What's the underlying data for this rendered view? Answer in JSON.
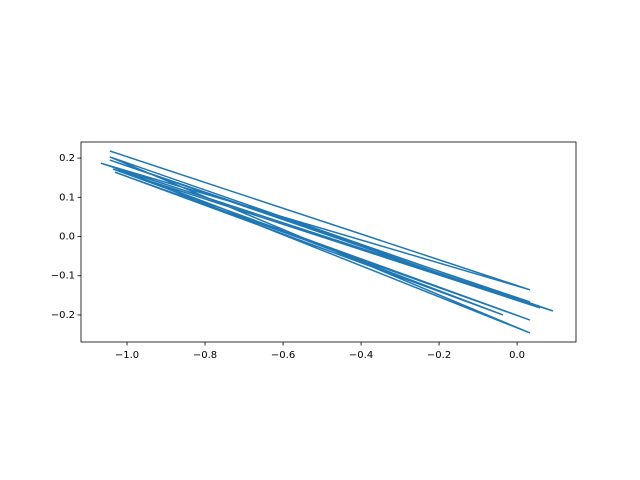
{
  "chart_data": {
    "type": "line",
    "x": [
      -1.044,
      0.033,
      -1.067,
      0.092,
      -1.044,
      0.033,
      -1.036,
      -0.036,
      -1.031,
      0.033,
      -1.036,
      0.059,
      -1.044,
      0.033
    ],
    "series": [
      {
        "color": "#1f77b4",
        "values": [
          0.218,
          -0.136,
          0.187,
          -0.19,
          0.203,
          -0.246,
          0.177,
          -0.2,
          0.164,
          -0.213,
          0.172,
          -0.182,
          0.195,
          -0.167
        ]
      }
    ],
    "xlim": [
      -1.118,
      0.151
    ],
    "ylim": [
      -0.269,
      0.241
    ],
    "xticks": [
      {
        "value": -1.0,
        "label": "−1.0"
      },
      {
        "value": -0.8,
        "label": "−0.8"
      },
      {
        "value": -0.6,
        "label": "−0.6"
      },
      {
        "value": -0.4,
        "label": "−0.4"
      },
      {
        "value": -0.2,
        "label": "−0.2"
      },
      {
        "value": 0,
        "label": "0.0"
      }
    ],
    "yticks": [
      {
        "value": -0.2,
        "label": "−0.2"
      },
      {
        "value": -0.1,
        "label": "−0.1"
      },
      {
        "value": 0,
        "label": "0.0"
      },
      0.1,
      0.2
    ]
  }
}
